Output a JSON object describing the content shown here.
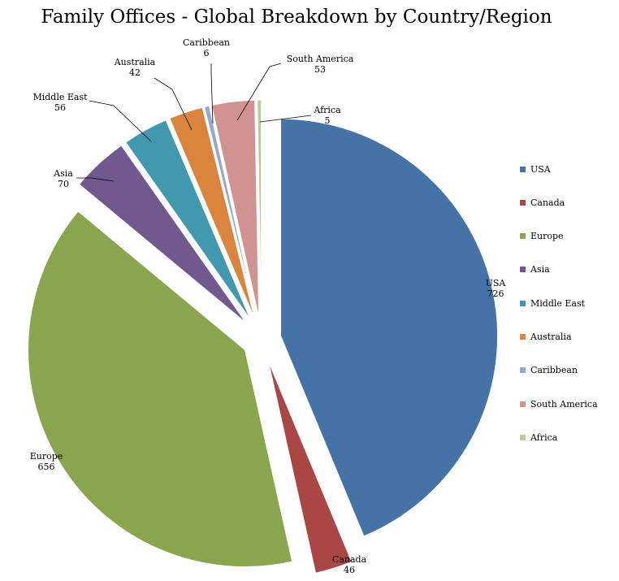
{
  "chart_data": {
    "type": "pie",
    "title": "Family Offices - Global Breakdown by Country/Region",
    "categories": [
      "USA",
      "Canada",
      "Europe",
      "Asia",
      "Middle East",
      "Australia",
      "Caribbean",
      "South America",
      "Africa"
    ],
    "values": [
      726,
      46,
      656,
      70,
      56,
      42,
      6,
      53,
      5
    ],
    "colors": [
      "#4572A7",
      "#AA4643",
      "#89A54E",
      "#71588F",
      "#4198AF",
      "#DB843D",
      "#93A9CF",
      "#D19392",
      "#B9CD96"
    ],
    "exploded": true,
    "data_labels": true,
    "legend_position": "right"
  }
}
